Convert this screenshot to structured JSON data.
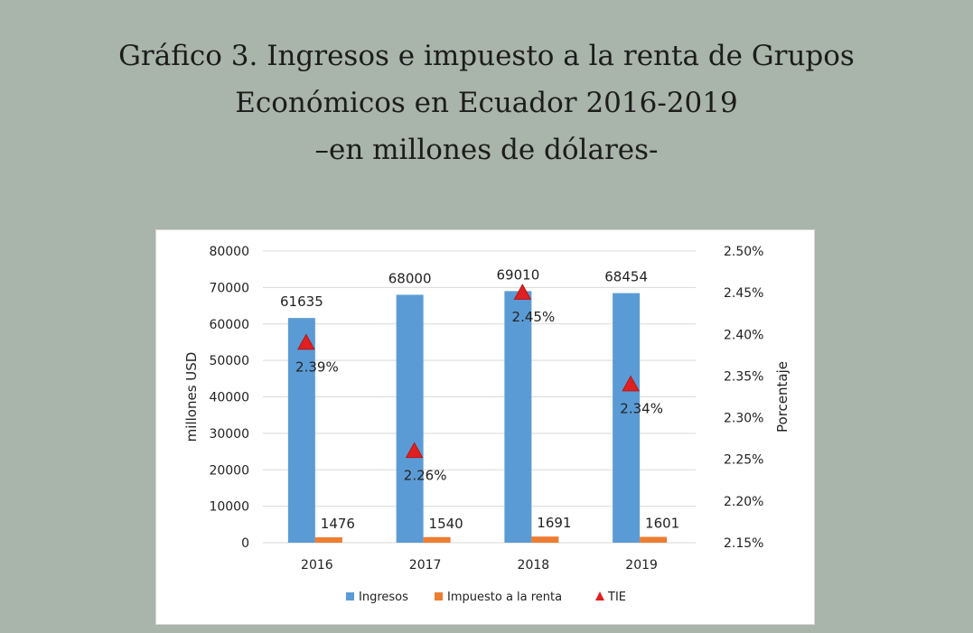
{
  "title": {
    "line1": "Gráfico 3. Ingresos e impuesto a la renta de Grupos",
    "line2": "Económicos en Ecuador 2016-2019",
    "line3": "–en millones de dólares-"
  },
  "chart_data": {
    "type": "bar",
    "categories": [
      "2016",
      "2017",
      "2018",
      "2019"
    ],
    "series": [
      {
        "name": "Ingresos",
        "type": "bar",
        "axis": "left",
        "color": "#5b9bd5",
        "values": [
          61635,
          68000,
          69010,
          68454
        ],
        "labels": [
          "61635",
          "68000",
          "69010",
          "68454"
        ]
      },
      {
        "name": "Impuesto a la renta",
        "type": "bar",
        "axis": "left",
        "color": "#ed7d31",
        "values": [
          1476,
          1540,
          1691,
          1601
        ],
        "labels": [
          "1476",
          "1540",
          "1691",
          "1601"
        ]
      },
      {
        "name": "TIE",
        "type": "scatter",
        "marker": "triangle",
        "axis": "right",
        "color": "#e02020",
        "values": [
          2.39,
          2.26,
          2.45,
          2.34
        ],
        "labels": [
          "2.39%",
          "2.26%",
          "2.45%",
          "2.34%"
        ]
      }
    ],
    "y_left": {
      "label": "millones USD",
      "range": [
        0,
        80000
      ],
      "ticks": [
        0,
        10000,
        20000,
        30000,
        40000,
        50000,
        60000,
        70000,
        80000
      ],
      "tick_labels": [
        "0",
        "10000",
        "20000",
        "30000",
        "40000",
        "50000",
        "60000",
        "70000",
        "80000"
      ]
    },
    "y_right": {
      "label": "Porcentaje",
      "range": [
        2.15,
        2.5
      ],
      "ticks": [
        2.15,
        2.2,
        2.25,
        2.3,
        2.35,
        2.4,
        2.45,
        2.5
      ],
      "tick_labels": [
        "2.15%",
        "2.20%",
        "2.25%",
        "2.30%",
        "2.35%",
        "2.40%",
        "2.45%",
        "2.50%"
      ]
    },
    "grid": true,
    "legend_position": "bottom",
    "gridline_color": "#d9d9d9"
  }
}
